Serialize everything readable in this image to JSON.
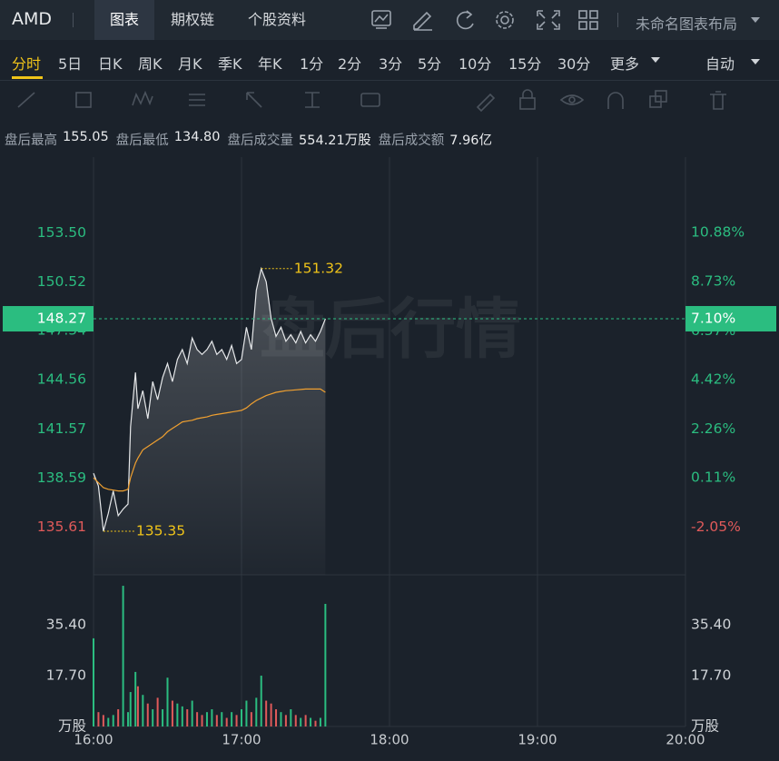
{
  "header": {
    "symbol": "AMD",
    "tabs": [
      "图表",
      "期权链",
      "个股资料"
    ],
    "layout_name": "未命名图表布局"
  },
  "periods": [
    "分时",
    "5日",
    "日K",
    "周K",
    "月K",
    "季K",
    "年K",
    "1分",
    "2分",
    "3分",
    "5分",
    "10分",
    "15分",
    "30分",
    "更多"
  ],
  "mode": "自动",
  "stats": [
    {
      "label": "盘后最高",
      "value": "155.05"
    },
    {
      "label": "盘后最低",
      "value": "134.80"
    },
    {
      "label": "盘后成交量",
      "value": "554.21万股"
    },
    {
      "label": "盘后成交额",
      "value": "7.96亿"
    }
  ],
  "chart_data": [
    {
      "type": "line",
      "watermark": "盘后行情",
      "x": [
        "16:00",
        "16:02",
        "16:04",
        "16:06",
        "16:08",
        "16:10",
        "16:12",
        "16:14",
        "16:15",
        "16:17",
        "16:18",
        "16:20",
        "16:22",
        "16:24",
        "16:26",
        "16:28",
        "16:30",
        "16:32",
        "16:34",
        "16:36",
        "16:38",
        "16:40",
        "16:42",
        "16:44",
        "16:46",
        "16:48",
        "16:50",
        "16:52",
        "16:54",
        "16:56",
        "16:58",
        "17:00",
        "17:02",
        "17:04",
        "17:06",
        "17:08",
        "17:10",
        "17:12",
        "17:14",
        "17:16",
        "17:18",
        "17:20",
        "17:22",
        "17:24",
        "17:26",
        "17:28",
        "17:30",
        "17:32",
        "17:34"
      ],
      "series": [
        {
          "color": "#e6e8ea",
          "values": [
            138.88,
            138.1,
            135.35,
            136.45,
            137.8,
            136.3,
            136.7,
            137.0,
            141.7,
            145.0,
            142.8,
            143.9,
            142.2,
            144.45,
            143.35,
            144.7,
            145.55,
            144.45,
            145.8,
            146.4,
            145.55,
            147.1,
            146.4,
            146.1,
            146.4,
            146.9,
            146.1,
            146.4,
            145.8,
            146.65,
            145.55,
            145.8,
            147.75,
            146.4,
            150.0,
            151.32,
            150.52,
            148.3,
            147.2,
            147.75,
            146.9,
            147.3,
            146.8,
            147.5,
            146.8,
            147.3,
            146.9,
            147.5,
            148.27
          ]
        },
        {
          "color": "#f0a030",
          "values": [
            138.6,
            138.3,
            138.0,
            137.9,
            137.85,
            137.8,
            137.8,
            137.9,
            138.6,
            139.5,
            139.8,
            140.3,
            140.5,
            140.7,
            140.9,
            141.1,
            141.4,
            141.6,
            141.8,
            142.0,
            142.05,
            142.1,
            142.2,
            142.25,
            142.3,
            142.4,
            142.45,
            142.5,
            142.55,
            142.6,
            142.65,
            142.7,
            142.85,
            143.1,
            143.3,
            143.45,
            143.6,
            143.7,
            143.8,
            143.85,
            143.9,
            143.92,
            143.95,
            143.97,
            144.0,
            144.0,
            144.0,
            144.0,
            143.8
          ]
        }
      ],
      "xlim": [
        "16:00",
        "20:00"
      ],
      "ylim": [
        132.7,
        158.1
      ],
      "y2lim": [
        -4.15,
        14.2
      ],
      "yticks": [
        {
          "value": 153.5,
          "label": "153.50"
        },
        {
          "value": 150.52,
          "label": "150.52"
        },
        {
          "value": 147.54,
          "label": "147.54"
        },
        {
          "value": 144.56,
          "label": "144.56"
        },
        {
          "value": 141.57,
          "label": "141.57"
        },
        {
          "value": 138.59,
          "label": "138.59"
        },
        {
          "value": 135.61,
          "label": "135.61"
        }
      ],
      "y2ticks": [
        {
          "value": 10.88,
          "label": "10.88%"
        },
        {
          "value": 8.73,
          "label": "8.73%"
        },
        {
          "value": 6.57,
          "label": "6.57%"
        },
        {
          "value": 4.42,
          "label": "4.42%"
        },
        {
          "value": 2.26,
          "label": "2.26%"
        },
        {
          "value": 0.11,
          "label": "0.11%"
        },
        {
          "value": -2.05,
          "label": "-2.05%"
        }
      ],
      "last_price": {
        "value": 148.27,
        "label": "148.27"
      },
      "last_change": {
        "value": 7.1,
        "label": "7.10%"
      },
      "annotations": [
        {
          "x": "17:08",
          "value": 151.32
        },
        {
          "x": "16:04",
          "value": 135.35
        }
      ],
      "up_color": "#2bbd80",
      "down_color": "#e05a5a"
    },
    {
      "type": "bar",
      "values": [
        30.7,
        5,
        4,
        3,
        4,
        6,
        49.0,
        5,
        12,
        19,
        14,
        11,
        8,
        6,
        10,
        6,
        17,
        9,
        8,
        7,
        6,
        9,
        5,
        4,
        5,
        6,
        4,
        5,
        3,
        5,
        4,
        6,
        9,
        5,
        10,
        17.7,
        9,
        8,
        6,
        5,
        4,
        6,
        4,
        3,
        4,
        3,
        2,
        3,
        42.7
      ],
      "ylim": [
        0,
        50.6
      ],
      "yticks": [
        {
          "value": 17.7,
          "label": "17.70"
        },
        {
          "value": 35.4,
          "label": "35.40"
        }
      ],
      "y_unit": "万股",
      "xticks": [
        "16:00",
        "17:00",
        "18:00",
        "19:00",
        "20:00"
      ]
    }
  ]
}
